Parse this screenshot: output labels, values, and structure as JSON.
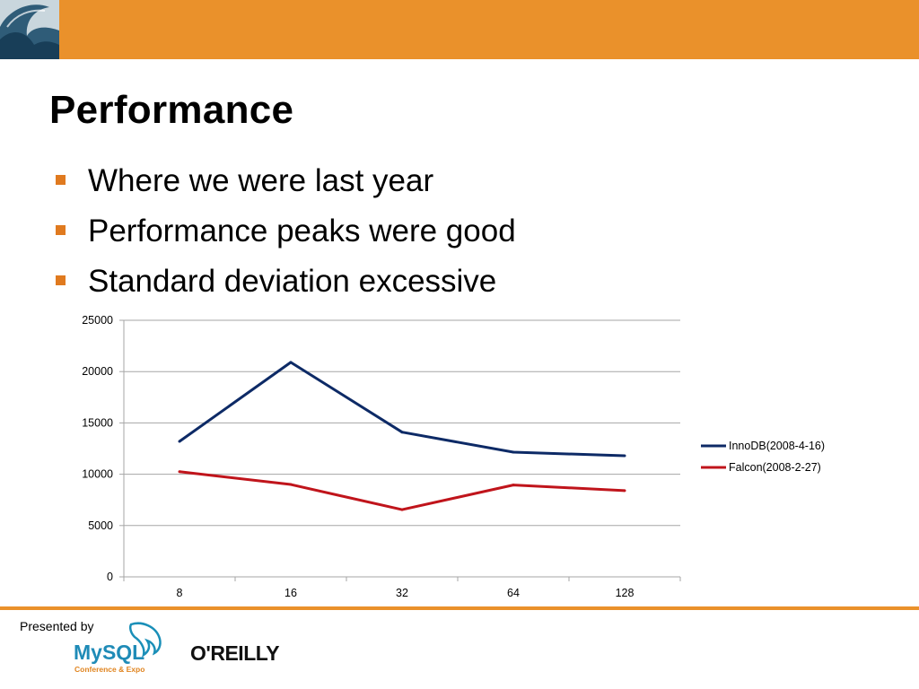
{
  "slide": {
    "title": "Performance",
    "bullets": [
      "Where we were last year",
      "Performance peaks were good",
      "Standard deviation excessive"
    ]
  },
  "colors": {
    "accent": "#ea912b",
    "bullet": "#e07a1f",
    "innodb": "#0d2a66",
    "falcon": "#c0141b",
    "grid": "#a6a6a6"
  },
  "footer": {
    "presented_by": "Presented by",
    "mysql_logo_text": "MySQL",
    "mysql_sub": "Conference & Expo",
    "oreilly": "O'REILLY"
  },
  "chart_data": {
    "type": "line",
    "categories": [
      "8",
      "16",
      "32",
      "64",
      "128"
    ],
    "series": [
      {
        "name": "InnoDB(2008-4-16)",
        "values": [
          13200,
          20900,
          14100,
          12150,
          11800
        ]
      },
      {
        "name": "Falcon(2008-2-27)",
        "values": [
          10250,
          9000,
          6550,
          8950,
          8400
        ]
      }
    ],
    "yticks": [
      "0",
      "5000",
      "10000",
      "15000",
      "20000",
      "25000"
    ],
    "ylim": [
      0,
      25000
    ],
    "grid": true,
    "legend": "right"
  }
}
